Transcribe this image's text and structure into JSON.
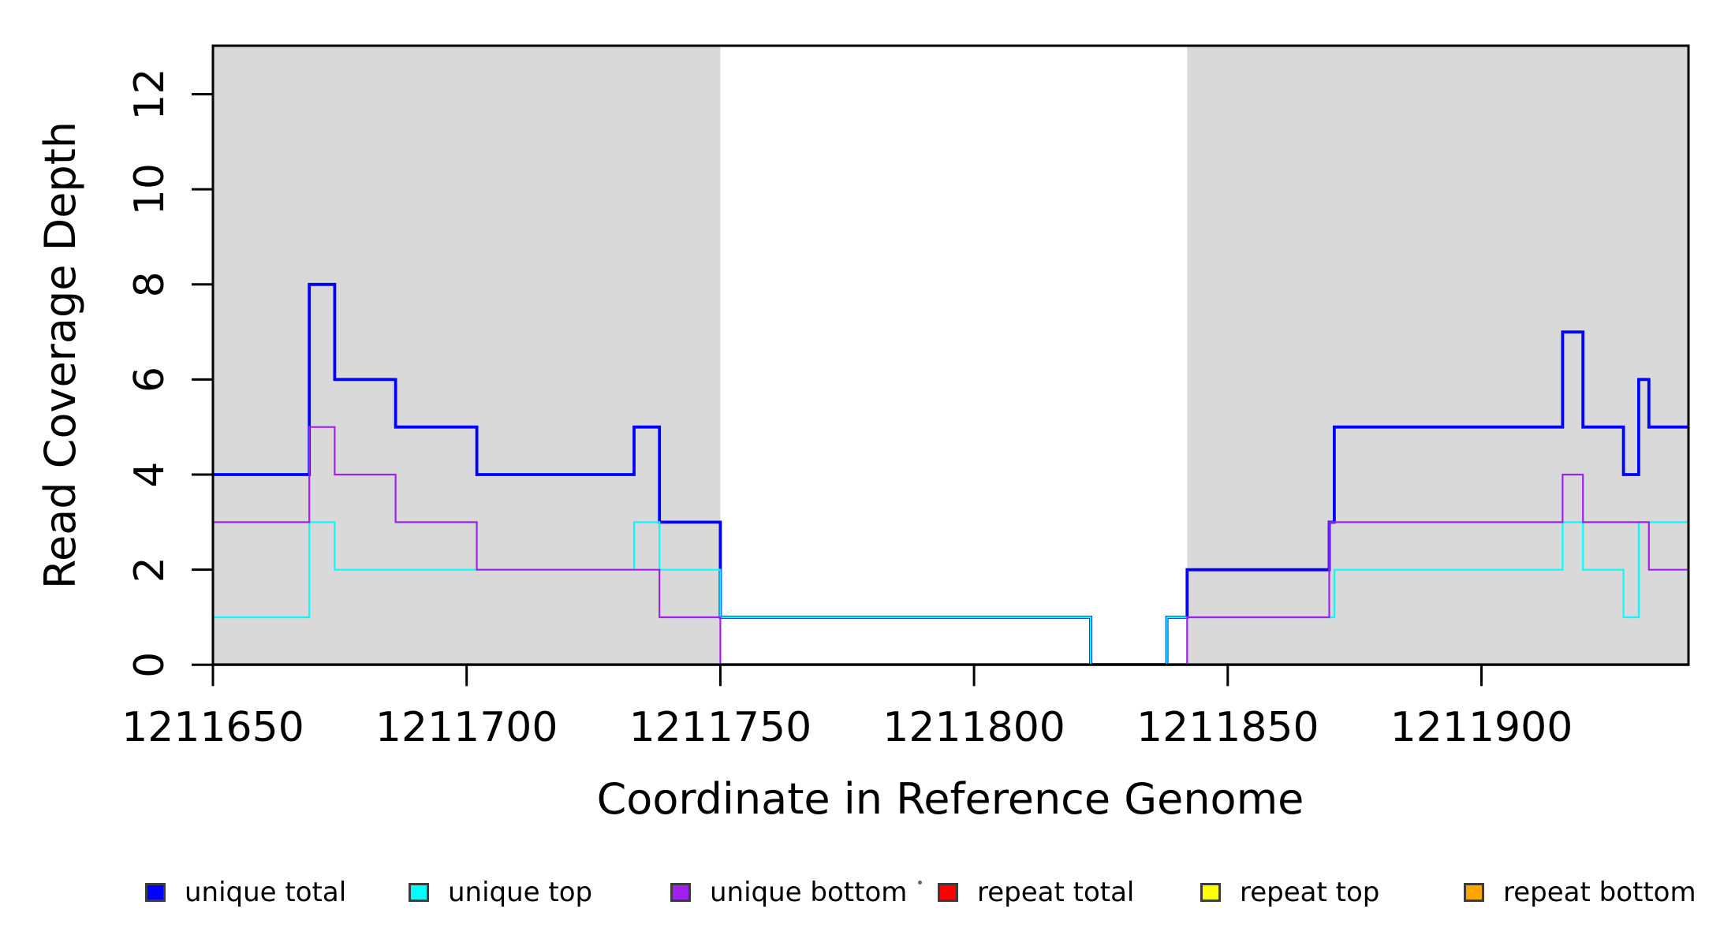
{
  "chart_data": {
    "type": "line",
    "subtype": "step-coverage",
    "title": "",
    "xlabel": "Coordinate in Reference Genome",
    "ylabel": "Read Coverage Depth",
    "xlim": [
      1211650,
      1211940.8
    ],
    "ylim": [
      0,
      13.02
    ],
    "grid": "off",
    "x_ticks": {
      "values": [
        1211650,
        1211700,
        1211750,
        1211800,
        1211850,
        1211900
      ],
      "labels": [
        "1211650",
        "1211700",
        "1211750",
        "1211800",
        "1211850",
        "1211900"
      ]
    },
    "y_ticks": {
      "values": [
        0,
        2,
        4,
        6,
        8,
        10,
        12
      ],
      "labels": [
        "0",
        "2",
        "4",
        "6",
        "8",
        "10",
        "12"
      ]
    },
    "masked_regions": {
      "color": "#d9d9d9",
      "regions": [
        {
          "from": 1211650,
          "to": 1211750
        },
        {
          "from": 1211842,
          "to": 1211940.8
        }
      ]
    },
    "series": [
      {
        "name": "repeat total",
        "color": "#ff0000",
        "width": 4.5,
        "segments": [
          [
            1211650,
            1211940.8,
            0
          ]
        ]
      },
      {
        "name": "repeat top",
        "color": "#ffff00",
        "width": 3,
        "segments": [
          [
            1211650,
            1211940.8,
            0
          ]
        ]
      },
      {
        "name": "repeat bottom",
        "color": "#ffa500",
        "width": 3.2,
        "segments": [
          [
            1211650,
            1211940.8,
            0
          ]
        ]
      },
      {
        "name": "unique total",
        "color": "#0000ff",
        "width": 3.8,
        "segments": [
          [
            1211650,
            1211669,
            4
          ],
          [
            1211669,
            1211674,
            8
          ],
          [
            1211674,
            1211686,
            6
          ],
          [
            1211686,
            1211702,
            5
          ],
          [
            1211702,
            1211733,
            4
          ],
          [
            1211733,
            1211738,
            5
          ],
          [
            1211738,
            1211750,
            3
          ],
          [
            1211750,
            1211823,
            1
          ],
          [
            1211823,
            1211838,
            0
          ],
          [
            1211838,
            1211842,
            1
          ],
          [
            1211842,
            1211870,
            2
          ],
          [
            1211870,
            1211871,
            3
          ],
          [
            1211871,
            1211916,
            5
          ],
          [
            1211916,
            1211920,
            7
          ],
          [
            1211920,
            1211928,
            5
          ],
          [
            1211928,
            1211931,
            4
          ],
          [
            1211931,
            1211933,
            6
          ],
          [
            1211933,
            1211940.8,
            5
          ]
        ]
      },
      {
        "name": "unique top",
        "color": "#00ffff",
        "width": 2.2,
        "segments": [
          [
            1211650,
            1211669,
            1
          ],
          [
            1211669,
            1211674,
            3
          ],
          [
            1211674,
            1211733,
            2
          ],
          [
            1211733,
            1211738,
            3
          ],
          [
            1211738,
            1211750,
            2
          ],
          [
            1211750,
            1211823,
            1
          ],
          [
            1211823,
            1211838,
            0
          ],
          [
            1211838,
            1211871,
            1
          ],
          [
            1211871,
            1211916,
            2
          ],
          [
            1211916,
            1211920,
            3
          ],
          [
            1211920,
            1211928,
            2
          ],
          [
            1211928,
            1211931,
            1
          ],
          [
            1211931,
            1211940.8,
            3
          ]
        ]
      },
      {
        "name": "unique bottom",
        "color": "#a020f0",
        "width": 2.2,
        "segments": [
          [
            1211650,
            1211669,
            3
          ],
          [
            1211669,
            1211674,
            5
          ],
          [
            1211674,
            1211686,
            4
          ],
          [
            1211686,
            1211702,
            3
          ],
          [
            1211702,
            1211738,
            2
          ],
          [
            1211738,
            1211750,
            1
          ],
          [
            1211750,
            1211842,
            0
          ],
          [
            1211842,
            1211870,
            1
          ],
          [
            1211870,
            1211916,
            3
          ],
          [
            1211916,
            1211920,
            4
          ],
          [
            1211920,
            1211933,
            3
          ],
          [
            1211933,
            1211940.8,
            2
          ]
        ]
      }
    ]
  },
  "legend": {
    "swatch_border": "#3c3c3c",
    "items": [
      {
        "label": "unique total",
        "color": "#0000ff"
      },
      {
        "label": "unique top",
        "color": "#00ffff"
      },
      {
        "label": "unique bottom",
        "color": "#a020f0"
      },
      {
        "label": "repeat total",
        "color": "#ff0000"
      },
      {
        "label": "repeat top",
        "color": "#ffff00"
      },
      {
        "label": "repeat bottom",
        "color": "#ffa500"
      }
    ]
  }
}
